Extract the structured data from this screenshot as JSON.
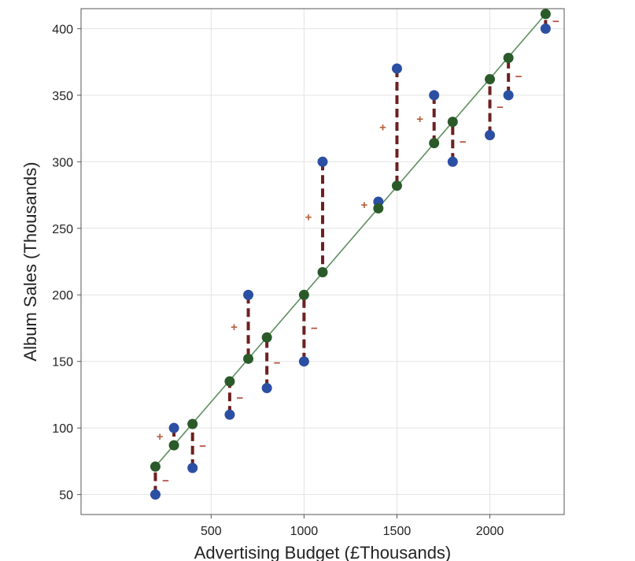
{
  "chart_data": {
    "type": "scatter",
    "title": "",
    "xlabel": "Advertising Budget (£Thousands)",
    "ylabel": "Album Sales (Thousands)",
    "xlim": [
      0,
      2400
    ],
    "ylim": [
      35,
      415
    ],
    "x_ticks": [
      500,
      1000,
      1500,
      2000
    ],
    "y_ticks": [
      50,
      100,
      150,
      200,
      250,
      300,
      350,
      400
    ],
    "grid": true,
    "regression_line": {
      "x": [
        200,
        2300
      ],
      "y": [
        71,
        411
      ]
    },
    "observed": {
      "x": [
        200,
        300,
        400,
        600,
        700,
        800,
        1000,
        1100,
        1400,
        1500,
        1700,
        1800,
        2000,
        2100,
        2300
      ],
      "y": [
        50,
        100,
        70,
        110,
        200,
        130,
        150,
        300,
        270,
        370,
        350,
        300,
        320,
        350,
        400
      ]
    },
    "predicted": {
      "x": [
        200,
        300,
        400,
        600,
        700,
        800,
        1000,
        1100,
        1400,
        1500,
        1700,
        1800,
        2000,
        2100,
        2300
      ],
      "y": [
        71,
        87,
        103,
        135,
        152,
        168,
        200,
        217,
        265,
        282,
        314,
        330,
        362,
        378,
        411
      ]
    },
    "residual_signs": [
      "−",
      "+",
      "−",
      "−",
      "+",
      "−",
      "−",
      "+",
      "+",
      "+",
      "+",
      "−",
      "−",
      "−",
      "−"
    ],
    "colors": {
      "observed": "#2b4fa3",
      "predicted": "#2a5a2a",
      "line": "#5f8f5f",
      "residual": "#6e1f1f",
      "grid": "#e3e3e3",
      "frame": "#555555"
    }
  }
}
